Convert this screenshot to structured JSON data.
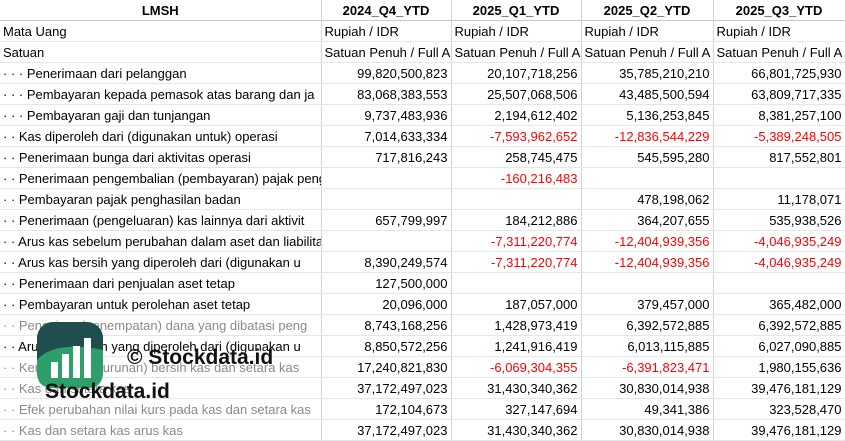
{
  "header": {
    "title": "LMSH",
    "columns": [
      "2024_Q4_YTD",
      "2025_Q1_YTD",
      "2025_Q2_YTD",
      "2025_Q3_YTD"
    ]
  },
  "meta_rows": [
    {
      "label": "Mata Uang",
      "values": [
        "Rupiah / IDR",
        "Rupiah / IDR",
        "Rupiah / IDR",
        "Rupiah / IDR"
      ]
    },
    {
      "label": "Satuan",
      "values": [
        "Satuan Penuh / Full A",
        "Satuan Penuh / Full A",
        "Satuan Penuh / Full A",
        "Satuan Penuh / Full A"
      ]
    }
  ],
  "rows": [
    {
      "label": "· · · Penerimaan dari pelanggan",
      "values": [
        "99,820,500,823",
        "20,107,718,256",
        "35,785,210,210",
        "66,801,725,930"
      ]
    },
    {
      "label": "· · · Pembayaran kepada pemasok atas barang dan ja",
      "values": [
        "83,068,383,553",
        "25,507,068,506",
        "43,485,500,594",
        "63,809,717,335"
      ]
    },
    {
      "label": "· · · Pembayaran gaji dan tunjangan",
      "values": [
        "9,737,483,936",
        "2,194,612,402",
        "5,136,253,845",
        "8,381,257,100"
      ]
    },
    {
      "label": "· · Kas diperoleh dari (digunakan untuk) operasi",
      "values": [
        "7,014,633,334",
        "-7,593,962,652",
        "-12,836,544,229",
        "-5,389,248,505"
      ]
    },
    {
      "label": "· · Penerimaan bunga dari aktivitas operasi",
      "values": [
        "717,816,243",
        "258,745,475",
        "545,595,280",
        "817,552,801"
      ]
    },
    {
      "label": "· · Penerimaan pengembalian (pembayaran) pajak penghasilan dari aktivi",
      "values": [
        "",
        "-160,216,483",
        "",
        ""
      ]
    },
    {
      "label": "· · Pembayaran pajak penghasilan badan",
      "values": [
        "",
        "",
        "478,198,062",
        "11,178,071"
      ]
    },
    {
      "label": "· · Penerimaan (pengeluaran) kas lainnya dari aktivit",
      "values": [
        "657,799,997",
        "184,212,886",
        "364,207,655",
        "535,938,526"
      ]
    },
    {
      "label": "· · Arus kas sebelum perubahan dalam aset dan liabilitas yang diperoleh d",
      "values": [
        "",
        "-7,311,220,774",
        "-12,404,939,356",
        "-4,046,935,249"
      ]
    },
    {
      "label": "· · Arus kas bersih yang diperoleh dari (digunakan u",
      "values": [
        "8,390,249,574",
        "-7,311,220,774",
        "-12,404,939,356",
        "-4,046,935,249"
      ]
    },
    {
      "label": "· · Penerimaan dari penjualan aset tetap",
      "values": [
        "127,500,000",
        "",
        "",
        ""
      ]
    },
    {
      "label": "· · Pembayaran untuk perolehan aset tetap",
      "values": [
        "20,096,000",
        "187,057,000",
        "379,457,000",
        "365,482,000"
      ]
    },
    {
      "label": "· · Pencairan (penempatan) dana yang dibatasi peng",
      "values": [
        "8,743,168,256",
        "1,428,973,419",
        "6,392,572,885",
        "6,392,572,885"
      ],
      "faded": true
    },
    {
      "label": "· · Arus kas bersih yang diperoleh dari (digunakan u",
      "values": [
        "8,850,572,256",
        "1,241,916,419",
        "6,013,115,885",
        "6,027,090,885"
      ]
    },
    {
      "label": "· · Kenaikan (penurunan) bersih kas dan setara kas",
      "values": [
        "17,240,821,830",
        "-6,069,304,355",
        "-6,391,823,471",
        "1,980,155,636"
      ],
      "faded": true
    },
    {
      "label": "· · Kas dan setara kas",
      "values": [
        "37,172,497,023",
        "31,430,340,362",
        "30,830,014,938",
        "39,476,181,129"
      ],
      "faded": true
    },
    {
      "label": "· · Efek perubahan nilai kurs pada kas dan setara kas",
      "values": [
        "172,104,673",
        "327,147,694",
        "49,341,386",
        "323,528,470"
      ],
      "faded": true
    },
    {
      "label": "· · Kas dan setara kas arus kas",
      "values": [
        "37,172,497,023",
        "31,430,340,362",
        "30,830,014,938",
        "39,476,181,129"
      ],
      "faded": true
    }
  ],
  "watermark": {
    "copyright": "© Stockdata.id",
    "brand": "Stockdata.id"
  },
  "colors": {
    "negative": "#ff0000",
    "logo_dark": "#1f4e4e",
    "logo_green": "#2e9e6a"
  }
}
